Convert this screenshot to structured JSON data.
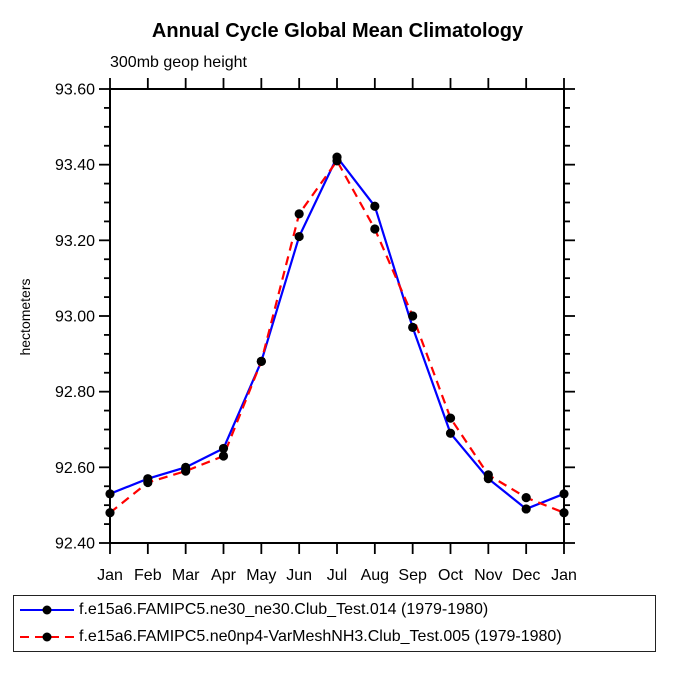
{
  "chart_data": {
    "type": "line",
    "title": "Annual Cycle Global Mean Climatology",
    "subtitle": "300mb geop height",
    "ylabel": "hectometers",
    "categories": [
      "Jan",
      "Feb",
      "Mar",
      "Apr",
      "May",
      "Jun",
      "Jul",
      "Aug",
      "Sep",
      "Oct",
      "Nov",
      "Dec",
      "Jan"
    ],
    "ylim": [
      92.4,
      93.6
    ],
    "yticks": [
      "92.40",
      "92.60",
      "92.80",
      "93.00",
      "93.20",
      "93.40",
      "93.60"
    ],
    "ytick_minor_step": 0.05,
    "grid": false,
    "legend_position": "bottom",
    "series": [
      {
        "name": "f.e15a6.FAMIPC5.ne30_ne30.Club_Test.014 (1979-1980)",
        "color": "#0000ff",
        "style": "solid",
        "marker_color": "#000000",
        "values": [
          92.53,
          92.57,
          92.6,
          92.65,
          92.88,
          93.21,
          93.42,
          93.29,
          92.97,
          92.69,
          92.57,
          92.49,
          92.53
        ]
      },
      {
        "name": "f.e15a6.FAMIPC5.ne0np4-VarMeshNH3.Club_Test.005 (1979-1980)",
        "color": "#ff0000",
        "style": "dashed",
        "marker_color": "#000000",
        "values": [
          92.48,
          92.56,
          92.59,
          92.63,
          92.88,
          93.27,
          93.41,
          93.23,
          93.0,
          92.73,
          92.58,
          92.52,
          92.48
        ]
      }
    ]
  }
}
